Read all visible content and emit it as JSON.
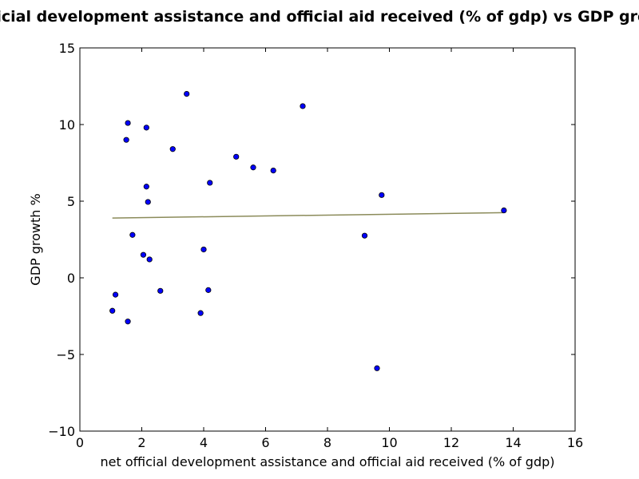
{
  "chart_data": {
    "type": "scatter",
    "title": "Net official development assistance and official aid received (% of gdp) vs GDP growth %",
    "xlabel": "net official development assistance and official aid received (% of gdp)",
    "ylabel": "GDP growth %",
    "xlim": [
      0,
      16
    ],
    "ylim": [
      -10,
      15
    ],
    "xticks": [
      0,
      2,
      4,
      6,
      8,
      10,
      12,
      14,
      16
    ],
    "yticks": [
      -10,
      -5,
      0,
      5,
      10,
      15
    ],
    "xtick_labels": [
      "0",
      "2",
      "4",
      "6",
      "8",
      "10",
      "12",
      "14",
      "16"
    ],
    "ytick_labels": [
      "−10",
      "−5",
      "0",
      "5",
      "10",
      "15"
    ],
    "grid": false,
    "colors": {
      "points": "#0000ff",
      "point_edge": "#000000",
      "trend": "#8b8b5a"
    },
    "series": [
      {
        "points": [
          {
            "x": 1.55,
            "y": 10.1
          },
          {
            "x": 1.5,
            "y": 9.0
          },
          {
            "x": 2.15,
            "y": 9.8
          },
          {
            "x": 3.0,
            "y": 8.4
          },
          {
            "x": 3.45,
            "y": 12.0
          },
          {
            "x": 7.2,
            "y": 11.2
          },
          {
            "x": 5.05,
            "y": 7.9
          },
          {
            "x": 5.6,
            "y": 7.2
          },
          {
            "x": 6.25,
            "y": 7.0
          },
          {
            "x": 4.2,
            "y": 6.2
          },
          {
            "x": 2.15,
            "y": 5.95
          },
          {
            "x": 2.2,
            "y": 4.95
          },
          {
            "x": 9.75,
            "y": 5.4
          },
          {
            "x": 13.7,
            "y": 4.4
          },
          {
            "x": 1.7,
            "y": 2.8
          },
          {
            "x": 9.2,
            "y": 2.75
          },
          {
            "x": 4.0,
            "y": 1.85
          },
          {
            "x": 2.05,
            "y": 1.5
          },
          {
            "x": 2.25,
            "y": 1.2
          },
          {
            "x": 2.6,
            "y": -0.85
          },
          {
            "x": 4.15,
            "y": -0.8
          },
          {
            "x": 1.15,
            "y": -1.1
          },
          {
            "x": 1.05,
            "y": -2.15
          },
          {
            "x": 3.9,
            "y": -2.3
          },
          {
            "x": 1.55,
            "y": -2.85
          },
          {
            "x": 9.6,
            "y": -5.9
          }
        ]
      }
    ],
    "trend_line": {
      "x": [
        1.05,
        13.7
      ],
      "y": [
        3.9,
        4.25
      ]
    }
  }
}
